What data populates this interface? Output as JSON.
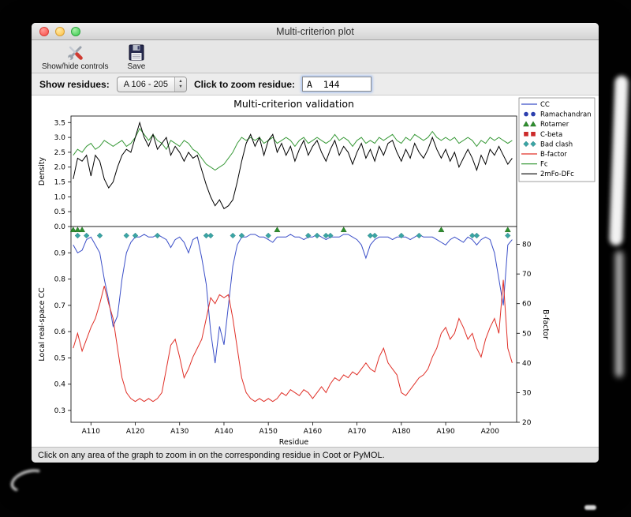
{
  "window": {
    "title": "Multi-criterion plot",
    "toolbar": {
      "show_hide_label": "Show/hide controls",
      "save_label": "Save"
    },
    "controls": {
      "show_residues_label": "Show residues:",
      "residue_range_value": "A 106 - 205",
      "zoom_residue_label": "Click to zoom residue:",
      "zoom_residue_value": "A  144"
    },
    "status_bar": "Click on any area of the graph to zoom in on the corresponding residue in Coot or PyMOL."
  },
  "chart_data": {
    "type": "line",
    "title": "Multi-criterion validation",
    "xlabel": "Residue",
    "x_start": 106,
    "x_end": 205,
    "x_axis": {
      "min": 105.5,
      "max": 206
    },
    "x_ticks": [
      {
        "value": 110,
        "label": "A110"
      },
      {
        "value": 120,
        "label": "A120"
      },
      {
        "value": 130,
        "label": "A130"
      },
      {
        "value": 140,
        "label": "A140"
      },
      {
        "value": 150,
        "label": "A150"
      },
      {
        "value": 160,
        "label": "A160"
      },
      {
        "value": 170,
        "label": "A170"
      },
      {
        "value": 180,
        "label": "A180"
      },
      {
        "value": 190,
        "label": "A190"
      },
      {
        "value": 200,
        "label": "A200"
      }
    ],
    "top_plot": {
      "ylabel": "Density",
      "ylim": [
        0.0,
        3.72
      ],
      "yticks": [
        0.0,
        0.5,
        1.0,
        1.5,
        2.0,
        2.5,
        3.0,
        3.5
      ],
      "grid": false,
      "series": [
        {
          "name": "Fc",
          "color": "#3a9a3a",
          "values": [
            2.4,
            2.6,
            2.5,
            2.7,
            2.8,
            2.6,
            2.7,
            2.9,
            2.8,
            2.7,
            2.8,
            2.9,
            2.7,
            2.8,
            3.0,
            3.3,
            3.1,
            2.9,
            3.1,
            2.9,
            2.8,
            2.6,
            2.9,
            2.8,
            2.7,
            2.9,
            2.8,
            2.6,
            2.5,
            2.3,
            2.1,
            2.0,
            1.9,
            2.0,
            2.1,
            2.3,
            2.5,
            2.8,
            3.0,
            2.9,
            3.0,
            2.9,
            3.0,
            2.8,
            2.9,
            3.0,
            2.8,
            2.9,
            3.0,
            2.9,
            2.7,
            2.9,
            3.0,
            2.8,
            2.9,
            3.0,
            2.9,
            2.8,
            2.9,
            3.1,
            2.9,
            3.0,
            2.9,
            2.7,
            2.9,
            3.0,
            2.8,
            2.9,
            2.8,
            3.0,
            2.9,
            3.0,
            3.1,
            2.9,
            2.8,
            3.0,
            2.9,
            3.1,
            3.0,
            2.9,
            3.0,
            3.2,
            3.0,
            2.9,
            3.0,
            2.9,
            3.0,
            2.8,
            2.9,
            3.0,
            2.9,
            2.7,
            2.9,
            2.8,
            3.0,
            2.9,
            3.0,
            2.9,
            2.8,
            2.9
          ]
        },
        {
          "name": "2mFo-DFc",
          "color": "#000000",
          "values": [
            1.6,
            2.3,
            2.2,
            2.4,
            1.7,
            2.4,
            2.2,
            1.6,
            1.3,
            1.5,
            2.0,
            2.4,
            2.6,
            2.5,
            3.0,
            3.5,
            3.0,
            2.7,
            3.1,
            2.6,
            2.8,
            3.0,
            2.4,
            2.7,
            2.5,
            2.2,
            2.5,
            2.3,
            2.4,
            1.9,
            1.4,
            1.0,
            0.7,
            0.9,
            0.6,
            0.7,
            0.9,
            1.5,
            2.2,
            2.8,
            3.1,
            2.7,
            3.0,
            2.4,
            2.9,
            3.1,
            2.5,
            2.8,
            2.4,
            2.7,
            2.2,
            2.6,
            2.9,
            2.4,
            2.7,
            2.9,
            2.5,
            2.2,
            2.6,
            2.9,
            2.4,
            2.7,
            2.5,
            2.1,
            2.5,
            2.8,
            2.3,
            2.6,
            2.2,
            2.7,
            2.4,
            2.8,
            2.9,
            2.5,
            2.2,
            2.6,
            2.3,
            2.8,
            2.5,
            2.3,
            2.6,
            3.0,
            2.6,
            2.3,
            2.6,
            2.2,
            2.5,
            2.0,
            2.3,
            2.6,
            2.3,
            1.9,
            2.4,
            2.1,
            2.6,
            2.4,
            2.7,
            2.4,
            2.1,
            2.3
          ]
        }
      ]
    },
    "bottom_plot": {
      "ylabel_left": "Local real-space CC",
      "ylabel_left_color": "#3b4fc8",
      "ylabel_right": "B-factor",
      "ylabel_right_color": "#e03028",
      "ylim_left": [
        0.255,
        1.0
      ],
      "yticks_left": [
        0.3,
        0.4,
        0.5,
        0.6,
        0.7,
        0.8,
        0.9
      ],
      "ylim_right": [
        20,
        86
      ],
      "yticks_right": [
        20,
        30,
        40,
        50,
        60,
        70,
        80
      ],
      "grid": false,
      "series": [
        {
          "name": "CC",
          "axis": "left",
          "color": "#3b4fc8",
          "values": [
            0.93,
            0.9,
            0.91,
            0.95,
            0.96,
            0.93,
            0.9,
            0.8,
            0.72,
            0.62,
            0.66,
            0.8,
            0.9,
            0.94,
            0.96,
            0.96,
            0.97,
            0.96,
            0.96,
            0.97,
            0.96,
            0.95,
            0.92,
            0.95,
            0.96,
            0.94,
            0.9,
            0.95,
            0.96,
            0.88,
            0.78,
            0.6,
            0.48,
            0.62,
            0.55,
            0.7,
            0.85,
            0.93,
            0.96,
            0.96,
            0.97,
            0.97,
            0.96,
            0.96,
            0.95,
            0.94,
            0.96,
            0.96,
            0.96,
            0.97,
            0.96,
            0.96,
            0.95,
            0.96,
            0.96,
            0.97,
            0.96,
            0.95,
            0.96,
            0.96,
            0.96,
            0.97,
            0.97,
            0.96,
            0.95,
            0.93,
            0.88,
            0.93,
            0.95,
            0.96,
            0.96,
            0.96,
            0.95,
            0.96,
            0.96,
            0.96,
            0.95,
            0.96,
            0.97,
            0.96,
            0.96,
            0.96,
            0.95,
            0.94,
            0.93,
            0.95,
            0.96,
            0.95,
            0.94,
            0.96,
            0.95,
            0.93,
            0.95,
            0.96,
            0.95,
            0.9,
            0.8,
            0.7,
            0.93,
            0.95
          ]
        },
        {
          "name": "B-factor",
          "axis": "right",
          "color": "#e03028",
          "values": [
            45,
            50,
            44,
            48,
            52,
            55,
            60,
            66,
            60,
            55,
            45,
            35,
            30,
            28,
            27,
            28,
            27,
            28,
            27,
            28,
            30,
            38,
            46,
            48,
            42,
            35,
            38,
            42,
            45,
            48,
            55,
            62,
            60,
            63,
            62,
            63,
            55,
            45,
            35,
            30,
            28,
            27,
            28,
            27,
            28,
            27,
            28,
            30,
            29,
            31,
            30,
            29,
            31,
            30,
            28,
            30,
            32,
            30,
            33,
            35,
            34,
            36,
            35,
            37,
            36,
            38,
            40,
            38,
            37,
            42,
            45,
            40,
            38,
            36,
            30,
            29,
            31,
            33,
            35,
            36,
            38,
            42,
            45,
            50,
            52,
            48,
            50,
            55,
            52,
            48,
            50,
            45,
            42,
            48,
            52,
            55,
            50,
            68,
            45,
            40
          ]
        }
      ],
      "markers": {
        "ramachandran": {
          "shape": "circle",
          "color": "#2c3fae",
          "row": 0,
          "residues": []
        },
        "rotamer": {
          "shape": "triangle",
          "color": "#2f8f2f",
          "row": 0,
          "residues": [
            106,
            107,
            108,
            152,
            167,
            189,
            204
          ]
        },
        "c_beta": {
          "shape": "square",
          "color": "#cc2a2a",
          "row": 1,
          "residues": []
        },
        "bad_clash": {
          "shape": "diamond",
          "color": "#3aa5a5",
          "row": 1,
          "residues": [
            107,
            109,
            112,
            118,
            120,
            125,
            136,
            137,
            142,
            144,
            150,
            159,
            161,
            163,
            164,
            173,
            174,
            180,
            184,
            196,
            197,
            204
          ]
        }
      }
    },
    "legend": [
      {
        "label": "CC",
        "type": "line",
        "color": "#3b4fc8"
      },
      {
        "label": "Ramachandran",
        "type": "circle",
        "color": "#2c3fae"
      },
      {
        "label": "Rotamer",
        "type": "triangle",
        "color": "#2f8f2f"
      },
      {
        "label": "C-beta",
        "type": "square",
        "color": "#cc2a2a"
      },
      {
        "label": "Bad clash",
        "type": "diamond",
        "color": "#3aa5a5"
      },
      {
        "label": "B-factor",
        "type": "line",
        "color": "#e03028"
      },
      {
        "label": "Fc",
        "type": "line",
        "color": "#3a9a3a"
      },
      {
        "label": "2mFo-DFc",
        "type": "line",
        "color": "#000000"
      }
    ]
  }
}
